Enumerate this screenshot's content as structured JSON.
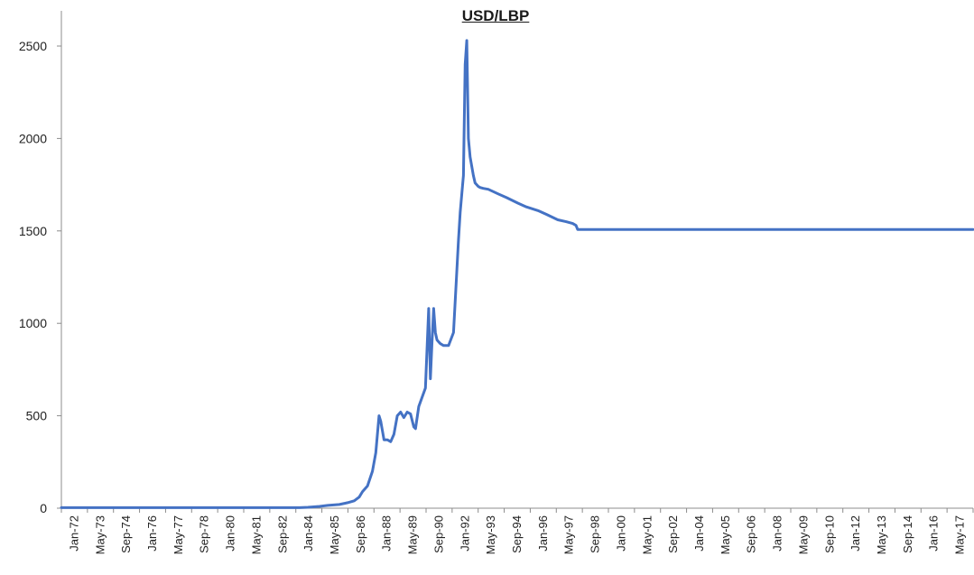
{
  "chart_data": {
    "type": "line",
    "title": "USD/LBP",
    "xlabel": "",
    "ylabel": "",
    "ylim": [
      0,
      2500
    ],
    "y_ticks": [
      "0",
      "500",
      "1000",
      "1500",
      "2000",
      "2500"
    ],
    "x_tick_labels": [
      "Jan-72",
      "May-73",
      "Sep-74",
      "Jan-76",
      "May-77",
      "Sep-78",
      "Jan-80",
      "May-81",
      "Sep-82",
      "Jan-84",
      "May-85",
      "Sep-86",
      "Jan-88",
      "May-89",
      "Sep-90",
      "Jan-92",
      "May-93",
      "Sep-94",
      "Jan-96",
      "May-97",
      "Sep-98",
      "Jan-00",
      "May-01",
      "Sep-02",
      "Jan-04",
      "May-05",
      "Sep-06",
      "Jan-08",
      "May-09",
      "Sep-10",
      "Jan-12",
      "May-13",
      "Sep-14",
      "Jan-16",
      "May-17"
    ],
    "grid": false,
    "legend": "none",
    "line_color": "#4472C4",
    "series": [
      {
        "x": [
          "1972-01",
          "1973-01",
          "1974-01",
          "1975-01",
          "1976-01",
          "1977-01",
          "1978-01",
          "1979-01",
          "1980-01",
          "1981-01",
          "1982-01",
          "1983-01",
          "1984-01",
          "1984-06",
          "1985-01",
          "1985-06",
          "1986-01",
          "1986-06",
          "1986-10",
          "1987-01",
          "1987-03",
          "1987-06",
          "1987-09",
          "1987-11",
          "1988-01",
          "1988-02",
          "1988-04",
          "1988-06",
          "1988-08",
          "1988-10",
          "1988-12",
          "1989-02",
          "1989-04",
          "1989-06",
          "1989-08",
          "1989-10",
          "1989-11",
          "1990-01",
          "1990-03",
          "1990-05",
          "1990-07",
          "1990-08",
          "1990-09",
          "1990-10",
          "1990-11",
          "1990-12",
          "1991-01",
          "1991-02",
          "1991-04",
          "1991-07",
          "1991-10",
          "1992-01",
          "1992-02",
          "1992-03",
          "1992-04",
          "1992-05",
          "1992-06",
          "1992-07",
          "1992-08",
          "1992-09",
          "1992-10",
          "1992-11",
          "1992-12",
          "1993-01",
          "1993-02",
          "1993-04",
          "1993-07",
          "1994-01",
          "1994-06",
          "1995-01",
          "1995-06",
          "1996-01",
          "1996-06",
          "1997-01",
          "1997-06",
          "1997-10",
          "1997-12",
          "1998-01",
          "2000-01",
          "2005-01",
          "2010-01",
          "2015-01",
          "2017-12"
        ],
        "values": [
          3,
          3,
          3,
          3,
          3,
          3,
          3,
          3,
          3,
          3,
          3,
          3,
          3,
          5,
          10,
          15,
          20,
          30,
          40,
          60,
          90,
          120,
          200,
          300,
          500,
          470,
          370,
          370,
          360,
          400,
          500,
          520,
          490,
          520,
          510,
          440,
          430,
          550,
          600,
          650,
          1080,
          700,
          900,
          1080,
          950,
          910,
          900,
          890,
          880,
          880,
          950,
          1450,
          1600,
          1700,
          1800,
          2400,
          2530,
          2000,
          1900,
          1850,
          1800,
          1760,
          1750,
          1740,
          1735,
          1730,
          1725,
          1700,
          1680,
          1650,
          1630,
          1610,
          1590,
          1560,
          1550,
          1540,
          1530,
          1508,
          1508,
          1508,
          1508,
          1508,
          1508
        ]
      }
    ]
  }
}
